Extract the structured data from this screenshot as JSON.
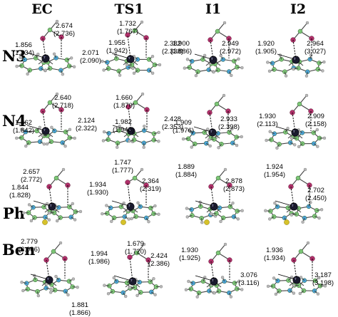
{
  "columns": [
    "EC",
    "TS1",
    "I1",
    "I2"
  ],
  "rows": [
    {
      "label": "N3",
      "cells": [
        [
          "2.674",
          "(2.736)",
          "1.856",
          "(1.834)",
          "2.071",
          "(2.090)"
        ],
        [
          "1.732",
          "(1.767)",
          "1.955",
          "(1.942)",
          "2.382",
          "(2.338)"
        ],
        [
          "1.900",
          "(1.886)",
          "2.949",
          "(2.972)"
        ],
        [
          "1.920",
          "(1.905)",
          "2.964",
          "(3.027)"
        ]
      ]
    },
    {
      "label": "N4",
      "cells": [
        [
          "2.640",
          "(2.718)",
          "1.862",
          "(1.842)",
          "2.124",
          "(2.322)"
        ],
        [
          "1.660",
          "(1.870)",
          "1.982",
          "(1.943)",
          "2.428",
          "(2.353)"
        ],
        [
          "1.909",
          "(1.976)",
          "2.933",
          "(2.398)"
        ],
        [
          "1.930",
          "(2.113)",
          "2.909",
          "(2.158)"
        ]
      ]
    },
    {
      "label": "Ph",
      "cells": [
        [
          "2.657",
          "(2.772)",
          "1.844",
          "(1.828)"
        ],
        [
          "1.747",
          "(1.777)",
          "1.934",
          "(1.930)",
          "2.364",
          "(2.319)"
        ],
        [
          "1.889",
          "(1.884)",
          "2.878",
          "(2.873)"
        ],
        [
          "1.924",
          "(1.954)",
          "2.702",
          "(2.450)"
        ]
      ]
    },
    {
      "label": "Ben",
      "cells": [
        [
          "2.779",
          "(3.006)",
          "1.881",
          "(1.866)"
        ],
        [
          "1.679",
          "(1.720)",
          "1.994",
          "(1.986)",
          "2.424",
          "(2.386)"
        ],
        [
          "1.930",
          "(1.925)",
          "3.076",
          "(3.116)"
        ],
        [
          "1.936",
          "(1.934)",
          "3.187",
          "(3.198)"
        ]
      ]
    }
  ],
  "colors": {
    "carbon": "#7cc576",
    "nitrogen": "#4aa3d8",
    "oxygen": "#b0306a",
    "metal": "#1a1a2e",
    "hydrogen": "#b8b8b8",
    "sulfur": "#d6c22a"
  }
}
